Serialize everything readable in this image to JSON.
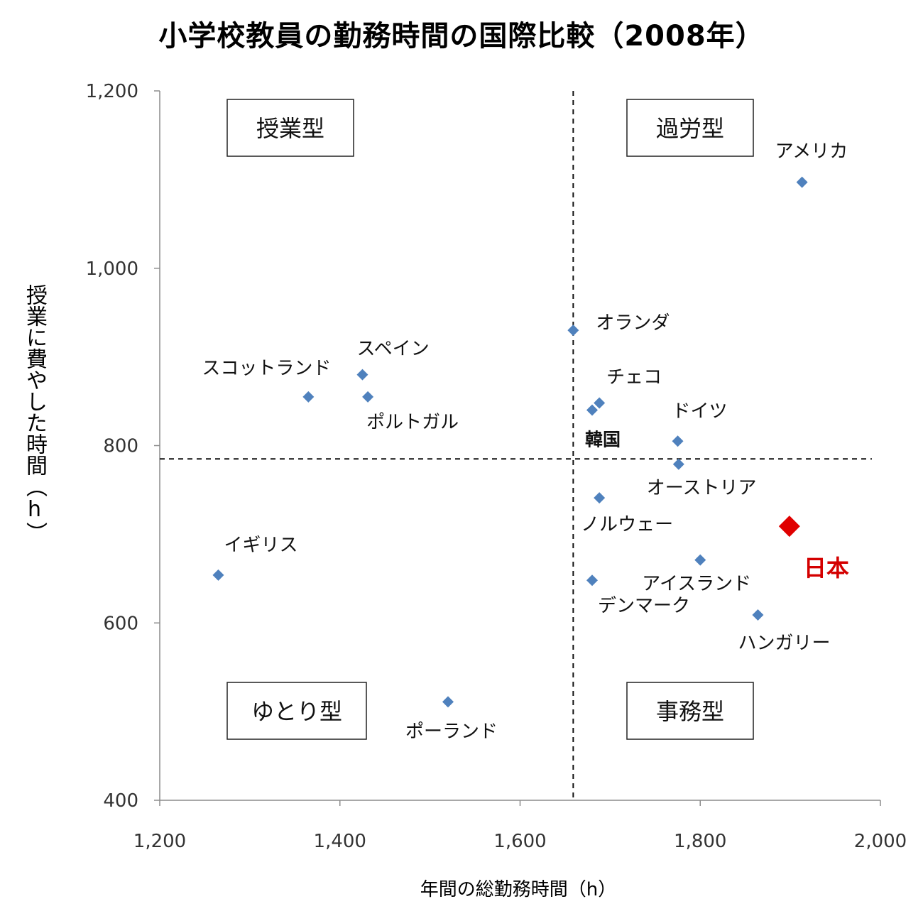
{
  "chart_data": {
    "type": "scatter",
    "title": "小学校教員の勤務時間の国際比較（2008年）",
    "xlabel": "年間の総勤務時間（h）",
    "ylabel": "授業に費やした時間（h）",
    "xlim": [
      1200,
      2000
    ],
    "ylim": [
      400,
      1200
    ],
    "x_ticks": [
      {
        "value": 1200,
        "label": "1,200"
      },
      {
        "value": 1400,
        "label": "1,400"
      },
      {
        "value": 1600,
        "label": "1,600"
      },
      {
        "value": 1800,
        "label": "1,800"
      },
      {
        "value": 2000,
        "label": "2,000"
      }
    ],
    "y_ticks": [
      {
        "value": 400,
        "label": "400"
      },
      {
        "value": 600,
        "label": "600"
      },
      {
        "value": 800,
        "label": "800"
      },
      {
        "value": 1000,
        "label": "1,000"
      },
      {
        "value": 1200,
        "label": "1,200"
      }
    ],
    "reference_lines": {
      "x": 1659,
      "y": 785
    },
    "quadrants": [
      {
        "label": "授業型",
        "position": "top-left"
      },
      {
        "label": "過労型",
        "position": "top-right"
      },
      {
        "label": "ゆとり型",
        "position": "bottom-left"
      },
      {
        "label": "事務型",
        "position": "bottom-right"
      }
    ],
    "points": [
      {
        "name": "アメリカ",
        "x": 1913,
        "y": 1097
      },
      {
        "name": "オランダ",
        "x": 1659,
        "y": 930
      },
      {
        "name": "スペイン",
        "x": 1425,
        "y": 880
      },
      {
        "name": "スコットランド",
        "x": 1365,
        "y": 855
      },
      {
        "name": "ポルトガル",
        "x": 1431,
        "y": 855
      },
      {
        "name": "チェコ",
        "x": 1688,
        "y": 848
      },
      {
        "name": "韓国",
        "x": 1680,
        "y": 840
      },
      {
        "name": "ドイツ",
        "x": 1775,
        "y": 805
      },
      {
        "name": "オーストリア",
        "x": 1776,
        "y": 779
      },
      {
        "name": "ノルウェー",
        "x": 1688,
        "y": 741
      },
      {
        "name": "日本",
        "x": 1899,
        "y": 709,
        "highlight": true
      },
      {
        "name": "アイスランド",
        "x": 1800,
        "y": 671
      },
      {
        "name": "イギリス",
        "x": 1265,
        "y": 654
      },
      {
        "name": "デンマーク",
        "x": 1680,
        "y": 648
      },
      {
        "name": "ハンガリー",
        "x": 1864,
        "y": 609
      },
      {
        "name": "ポーランド",
        "x": 1520,
        "y": 511
      }
    ],
    "colors": {
      "marker": "#4f81bd",
      "highlight": "#e00000"
    }
  }
}
